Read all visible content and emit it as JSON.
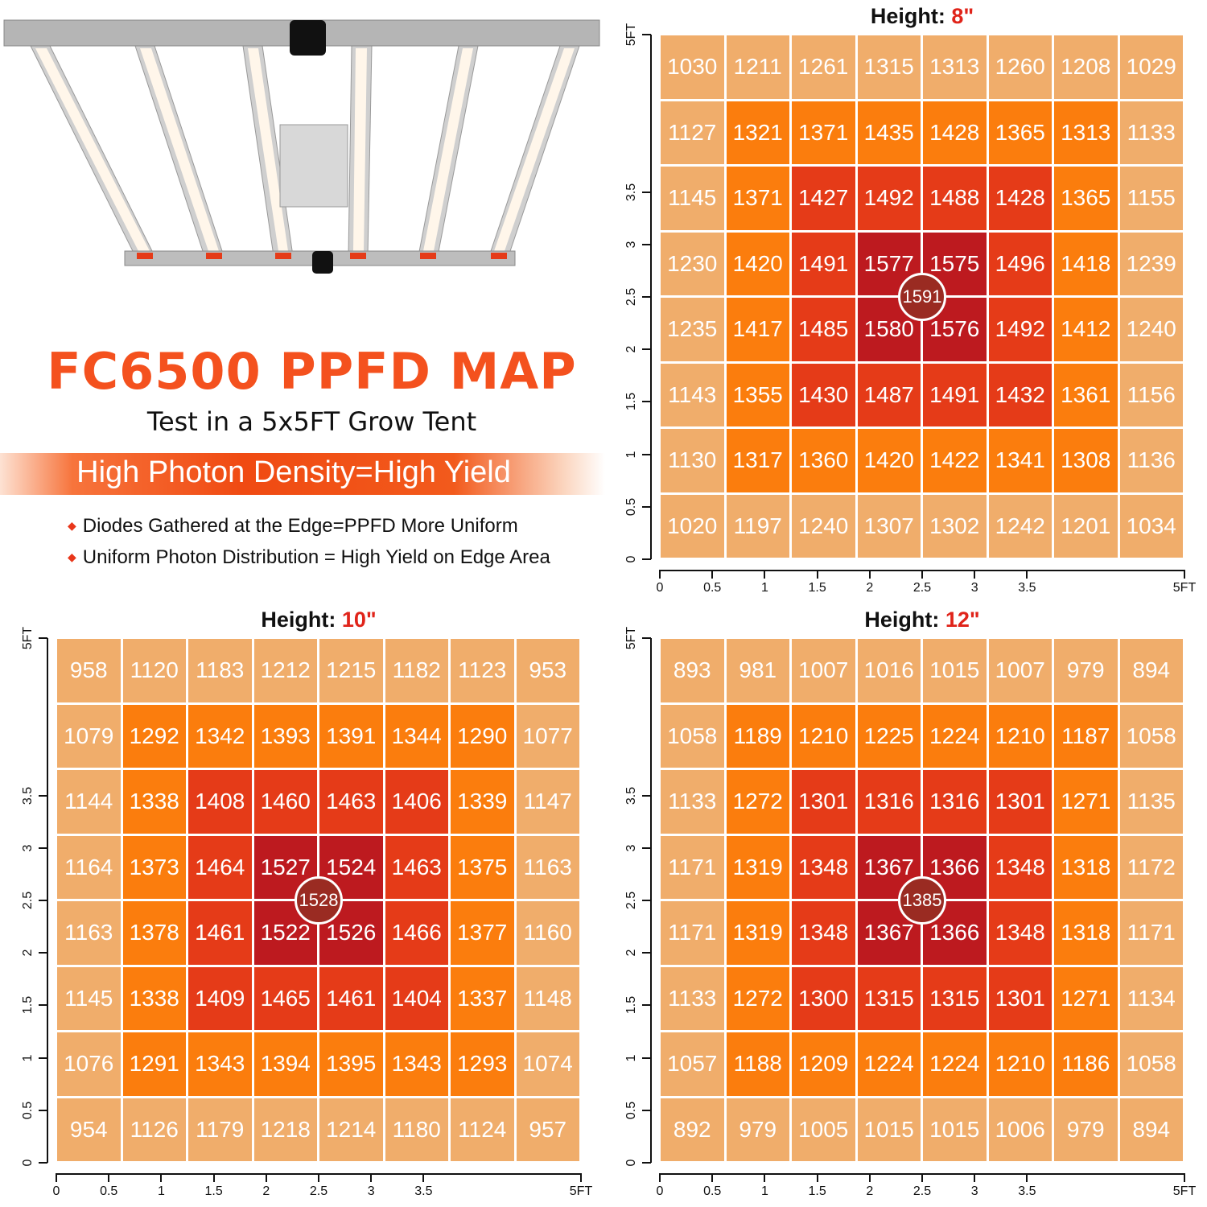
{
  "header": {
    "title": "FC6500 PPFD MAP",
    "subtitle": "Test in a 5x5FT Grow Tent",
    "banner": "High Photon Density=High Yield",
    "bullets": [
      "Diodes Gathered at the Edge=PPFD More Uniform",
      "Uniform Photon Distribution = High Yield on Edge Area"
    ]
  },
  "palette": {
    "outer": "#f0ad6b",
    "ring2": "#fb7d0d",
    "ring3": "#e53b18",
    "center": "#bd1a1f",
    "center_dot": "#9a2b22",
    "accent": "#f4511e"
  },
  "chart_data": [
    {
      "type": "heatmap",
      "title": "Height: ",
      "title_value": "8\"",
      "xlim": [
        0,
        5
      ],
      "ylim": [
        0,
        5
      ],
      "x_ticks": [
        "0",
        "0.5",
        "1",
        "1.5",
        "2",
        "2.5",
        "3",
        "3.5",
        "5FT"
      ],
      "y_ticks": [
        "0",
        "0.5",
        "1",
        "1.5",
        "2",
        "2.5",
        "3",
        "3.5",
        "5FT"
      ],
      "center_value": "1591",
      "rows": [
        [
          "1030",
          "1211",
          "1261",
          "1315",
          "1313",
          "1260",
          "1208",
          "1029"
        ],
        [
          "1127",
          "1321",
          "1371",
          "1435",
          "1428",
          "1365",
          "1313",
          "1133"
        ],
        [
          "1145",
          "1371",
          "1427",
          "1492",
          "1488",
          "1428",
          "1365",
          "1155"
        ],
        [
          "1230",
          "1420",
          "1491",
          "1577",
          "1575",
          "1496",
          "1418",
          "1239"
        ],
        [
          "1235",
          "1417",
          "1485",
          "1580",
          "1576",
          "1492",
          "1412",
          "1240"
        ],
        [
          "1143",
          "1355",
          "1430",
          "1487",
          "1491",
          "1432",
          "1361",
          "1156"
        ],
        [
          "1130",
          "1317",
          "1360",
          "1420",
          "1422",
          "1341",
          "1308",
          "1136"
        ],
        [
          "1020",
          "1197",
          "1240",
          "1307",
          "1302",
          "1242",
          "1201",
          "1034"
        ]
      ]
    },
    {
      "type": "heatmap",
      "title": "Height: ",
      "title_value": "10\"",
      "xlim": [
        0,
        5
      ],
      "ylim": [
        0,
        5
      ],
      "x_ticks": [
        "0",
        "0.5",
        "1",
        "1.5",
        "2",
        "2.5",
        "3",
        "3.5",
        "5FT"
      ],
      "y_ticks": [
        "0",
        "0.5",
        "1",
        "1.5",
        "2",
        "2.5",
        "3",
        "3.5",
        "5FT"
      ],
      "center_value": "1528",
      "rows": [
        [
          "958",
          "1120",
          "1183",
          "1212",
          "1215",
          "1182",
          "1123",
          "953"
        ],
        [
          "1079",
          "1292",
          "1342",
          "1393",
          "1391",
          "1344",
          "1290",
          "1077"
        ],
        [
          "1144",
          "1338",
          "1408",
          "1460",
          "1463",
          "1406",
          "1339",
          "1147"
        ],
        [
          "1164",
          "1373",
          "1464",
          "1527",
          "1524",
          "1463",
          "1375",
          "1163"
        ],
        [
          "1163",
          "1378",
          "1461",
          "1522",
          "1526",
          "1466",
          "1377",
          "1160"
        ],
        [
          "1145",
          "1338",
          "1409",
          "1465",
          "1461",
          "1404",
          "1337",
          "1148"
        ],
        [
          "1076",
          "1291",
          "1343",
          "1394",
          "1395",
          "1343",
          "1293",
          "1074"
        ],
        [
          "954",
          "1126",
          "1179",
          "1218",
          "1214",
          "1180",
          "1124",
          "957"
        ]
      ]
    },
    {
      "type": "heatmap",
      "title": "Height: ",
      "title_value": "12\"",
      "xlim": [
        0,
        5
      ],
      "ylim": [
        0,
        5
      ],
      "x_ticks": [
        "0",
        "0.5",
        "1",
        "1.5",
        "2",
        "2.5",
        "3",
        "3.5",
        "5FT"
      ],
      "y_ticks": [
        "0",
        "0.5",
        "1",
        "1.5",
        "2",
        "2.5",
        "3",
        "3.5",
        "5FT"
      ],
      "center_value": "1385",
      "rows": [
        [
          "893",
          "981",
          "1007",
          "1016",
          "1015",
          "1007",
          "979",
          "894"
        ],
        [
          "1058",
          "1189",
          "1210",
          "1225",
          "1224",
          "1210",
          "1187",
          "1058"
        ],
        [
          "1133",
          "1272",
          "1301",
          "1316",
          "1316",
          "1301",
          "1271",
          "1135"
        ],
        [
          "1171",
          "1319",
          "1348",
          "1367",
          "1366",
          "1348",
          "1318",
          "1172"
        ],
        [
          "1171",
          "1319",
          "1348",
          "1367",
          "1366",
          "1348",
          "1318",
          "1171"
        ],
        [
          "1133",
          "1272",
          "1300",
          "1315",
          "1315",
          "1301",
          "1271",
          "1134"
        ],
        [
          "1057",
          "1188",
          "1209",
          "1224",
          "1224",
          "1210",
          "1186",
          "1058"
        ],
        [
          "892",
          "979",
          "1005",
          "1015",
          "1015",
          "1006",
          "979",
          "894"
        ]
      ]
    }
  ]
}
